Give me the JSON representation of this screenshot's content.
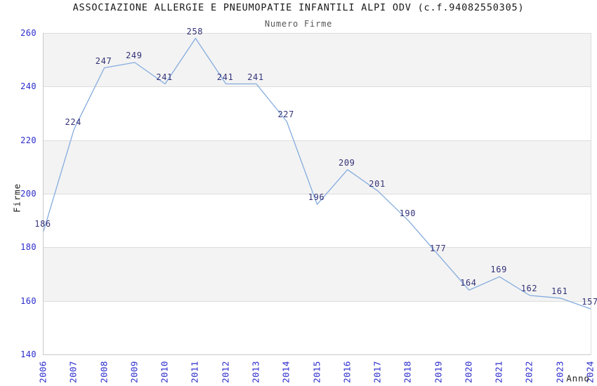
{
  "chart_data": {
    "type": "line",
    "title": "ASSOCIAZIONE ALLERGIE E PNEUMOPATIE INFANTILI ALPI ODV (c.f.94082550305)",
    "subtitle": "Numero Firme",
    "xlabel": "Anno",
    "ylabel": "Firme",
    "categories": [
      "2006",
      "2007",
      "2008",
      "2009",
      "2010",
      "2011",
      "2012",
      "2013",
      "2014",
      "2015",
      "2016",
      "2017",
      "2018",
      "2019",
      "2020",
      "2021",
      "2022",
      "2023",
      "2024"
    ],
    "values": [
      186,
      224,
      247,
      249,
      241,
      258,
      241,
      241,
      227,
      196,
      209,
      201,
      190,
      177,
      164,
      169,
      162,
      161,
      157
    ],
    "ylim": [
      140,
      260
    ],
    "yticks": [
      140,
      160,
      180,
      200,
      220,
      240,
      260
    ],
    "grid": "horizontal-bands",
    "legend": "none",
    "show_point_labels": true,
    "point_markers": false,
    "colors": {
      "line": "#85acdf",
      "point_label": "#323278",
      "tick_label": "#2b2bcc",
      "band_gray": "#f3f3f3",
      "band_white": "#ffffff",
      "gridline": "#dddddd",
      "axis": "#c9c9c9",
      "title": "#1a1a1a",
      "subtitle": "#555555",
      "axis_title": "#222222"
    }
  }
}
